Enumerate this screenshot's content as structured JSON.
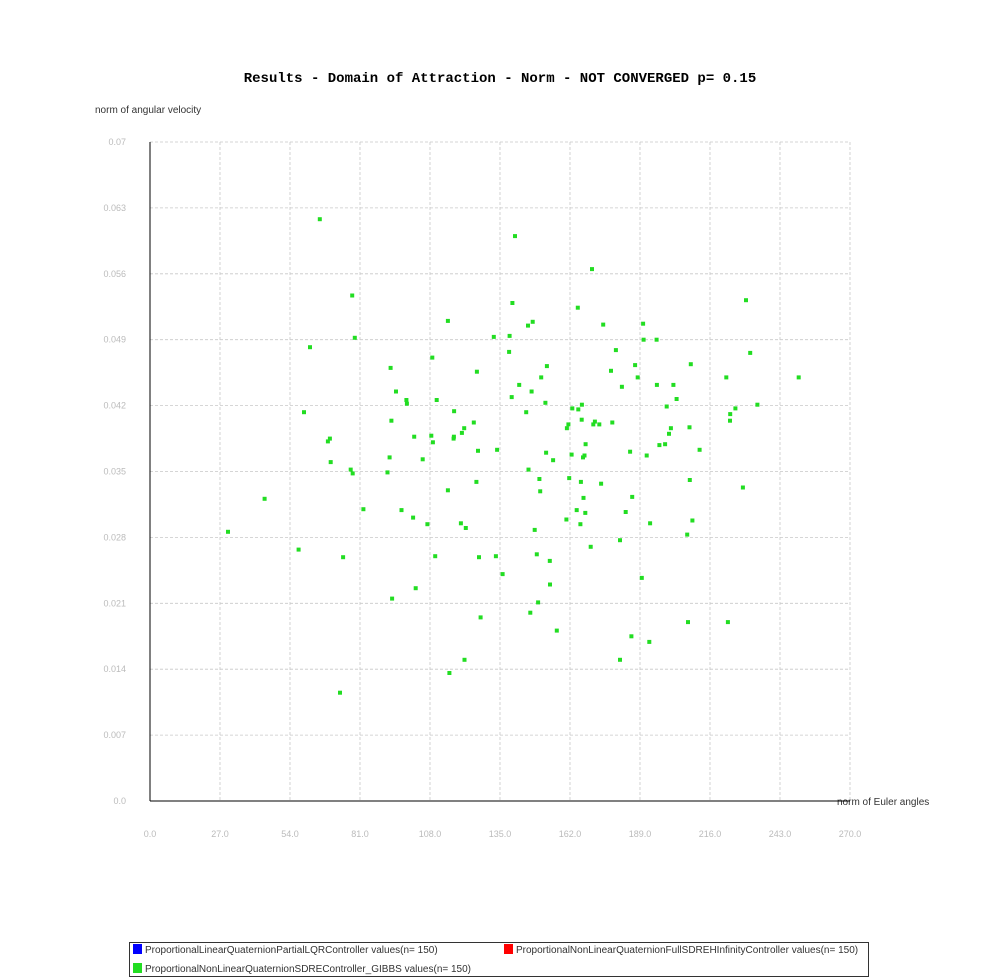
{
  "chart_data": {
    "type": "scatter",
    "title": "Results - Domain of Attraction - Norm - NOT CONVERGED p= 0.15",
    "xlabel": "norm of Euler angles",
    "ylabel": "norm of angular velocity",
    "xlim": [
      0,
      270
    ],
    "ylim": [
      0,
      0.07
    ],
    "x_ticks": [
      "0.0",
      "27.0",
      "54.0",
      "81.0",
      "108.0",
      "135.0",
      "162.0",
      "189.0",
      "216.0",
      "243.0",
      "270.0"
    ],
    "y_ticks": [
      "0.0",
      "0.007",
      "0.014",
      "0.021",
      "0.028",
      "0.035",
      "0.042",
      "0.049",
      "0.056",
      "0.063",
      "0.07"
    ],
    "grid": true,
    "legend_position": "bottom",
    "series": [
      {
        "name": "ProportionalLinearQuaternionPartialLQRController values(n= 150)",
        "color": "#0000ff",
        "points": []
      },
      {
        "name": "ProportionalNonLinearQuaternionFullSDREHInfinityController values(n= 150)",
        "color": "#ff0000",
        "points": []
      },
      {
        "name": "ProportionalNonLinearQuaternionSDREController_GIBBS values(n= 150)",
        "color": "#22dd22",
        "points": [
          [
            30.1,
            0.0286
          ],
          [
            44.2,
            0.0321
          ],
          [
            57.3,
            0.0267
          ],
          [
            59.4,
            0.0413
          ],
          [
            61.7,
            0.0482
          ],
          [
            65.5,
            0.0618
          ],
          [
            68.6,
            0.0382
          ],
          [
            69.4,
            0.0385
          ],
          [
            69.7,
            0.036
          ],
          [
            73.3,
            0.0115
          ],
          [
            74.5,
            0.0259
          ],
          [
            77.4,
            0.0352
          ],
          [
            78.0,
            0.0537
          ],
          [
            78.2,
            0.0348
          ],
          [
            79.0,
            0.0492
          ],
          [
            82.3,
            0.031
          ],
          [
            91.6,
            0.0349
          ],
          [
            92.4,
            0.0365
          ],
          [
            92.8,
            0.046
          ],
          [
            93.1,
            0.0404
          ],
          [
            93.4,
            0.0215
          ],
          [
            94.9,
            0.0435
          ],
          [
            97.0,
            0.0309
          ],
          [
            98.9,
            0.0426
          ],
          [
            99.1,
            0.0422
          ],
          [
            101.5,
            0.0301
          ],
          [
            101.9,
            0.0387
          ],
          [
            102.5,
            0.0226
          ],
          [
            105.2,
            0.0363
          ],
          [
            107.0,
            0.0294
          ],
          [
            108.5,
            0.0388
          ],
          [
            108.9,
            0.0471
          ],
          [
            109.1,
            0.0381
          ],
          [
            110.0,
            0.026
          ],
          [
            110.6,
            0.0426
          ],
          [
            114.9,
            0.033
          ],
          [
            114.9,
            0.051
          ],
          [
            115.5,
            0.0136
          ],
          [
            117.1,
            0.0385
          ],
          [
            117.2,
            0.0387
          ],
          [
            117.3,
            0.0414
          ],
          [
            119.9,
            0.0295
          ],
          [
            120.3,
            0.0391
          ],
          [
            121.2,
            0.0396
          ],
          [
            121.3,
            0.015
          ],
          [
            121.8,
            0.029
          ],
          [
            124.9,
            0.0402
          ],
          [
            125.9,
            0.0339
          ],
          [
            126.1,
            0.0456
          ],
          [
            126.5,
            0.0372
          ],
          [
            126.9,
            0.0259
          ],
          [
            127.5,
            0.0195
          ],
          [
            132.6,
            0.0493
          ],
          [
            133.4,
            0.026
          ],
          [
            133.9,
            0.0373
          ],
          [
            136.0,
            0.0241
          ],
          [
            138.5,
            0.0477
          ],
          [
            138.7,
            0.0494
          ],
          [
            139.5,
            0.0429
          ],
          [
            139.8,
            0.0529
          ],
          [
            140.8,
            0.06
          ],
          [
            142.4,
            0.0442
          ],
          [
            145.1,
            0.0413
          ],
          [
            145.8,
            0.0505
          ],
          [
            146.0,
            0.0352
          ],
          [
            146.7,
            0.02
          ],
          [
            147.2,
            0.0435
          ],
          [
            147.6,
            0.0509
          ],
          [
            148.4,
            0.0288
          ],
          [
            149.2,
            0.0262
          ],
          [
            149.7,
            0.0211
          ],
          [
            150.2,
            0.0342
          ],
          [
            150.5,
            0.0329
          ],
          [
            150.9,
            0.045
          ],
          [
            152.5,
            0.0423
          ],
          [
            152.8,
            0.037
          ],
          [
            153.1,
            0.0462
          ],
          [
            154.2,
            0.0255
          ],
          [
            154.3,
            0.023
          ],
          [
            155.5,
            0.0362
          ],
          [
            156.9,
            0.0181
          ],
          [
            160.6,
            0.0299
          ],
          [
            160.8,
            0.0396
          ],
          [
            161.4,
            0.04
          ],
          [
            161.7,
            0.0343
          ],
          [
            162.6,
            0.0368
          ],
          [
            162.9,
            0.0417
          ],
          [
            164.6,
            0.0309
          ],
          [
            165.0,
            0.0524
          ],
          [
            165.2,
            0.0416
          ],
          [
            166.0,
            0.0294
          ],
          [
            166.2,
            0.0339
          ],
          [
            166.5,
            0.0405
          ],
          [
            166.6,
            0.0421
          ],
          [
            167.0,
            0.0365
          ],
          [
            167.2,
            0.0322
          ],
          [
            167.6,
            0.0367
          ],
          [
            167.9,
            0.0306
          ],
          [
            168.0,
            0.0379
          ],
          [
            170.0,
            0.027
          ],
          [
            170.5,
            0.0565
          ],
          [
            171.0,
            0.04
          ],
          [
            171.6,
            0.0403
          ],
          [
            173.3,
            0.04
          ],
          [
            174.0,
            0.0337
          ],
          [
            174.8,
            0.0506
          ],
          [
            177.8,
            0.0457
          ],
          [
            178.3,
            0.0402
          ],
          [
            179.7,
            0.0479
          ],
          [
            181.3,
            0.015
          ],
          [
            181.3,
            0.0277
          ],
          [
            182.0,
            0.044
          ],
          [
            183.5,
            0.0307
          ],
          [
            185.2,
            0.0371
          ],
          [
            185.7,
            0.0175
          ],
          [
            186.0,
            0.0323
          ],
          [
            187.1,
            0.0463
          ],
          [
            188.1,
            0.045
          ],
          [
            189.7,
            0.0237
          ],
          [
            190.2,
            0.0507
          ],
          [
            190.4,
            0.049
          ],
          [
            191.6,
            0.0367
          ],
          [
            192.6,
            0.0169
          ],
          [
            192.9,
            0.0295
          ],
          [
            195.4,
            0.049
          ],
          [
            195.5,
            0.0442
          ],
          [
            196.5,
            0.0378
          ],
          [
            198.7,
            0.0379
          ],
          [
            199.3,
            0.0419
          ],
          [
            200.2,
            0.039
          ],
          [
            200.9,
            0.0396
          ],
          [
            201.9,
            0.0442
          ],
          [
            203.1,
            0.0427
          ],
          [
            207.2,
            0.0283
          ],
          [
            207.5,
            0.019
          ],
          [
            208.1,
            0.0397
          ],
          [
            208.2,
            0.0341
          ],
          [
            208.6,
            0.0464
          ],
          [
            209.2,
            0.0298
          ],
          [
            212.0,
            0.0373
          ],
          [
            222.3,
            0.045
          ],
          [
            222.9,
            0.019
          ],
          [
            223.7,
            0.0404
          ],
          [
            223.8,
            0.0411
          ],
          [
            225.8,
            0.0417
          ],
          [
            228.7,
            0.0333
          ],
          [
            229.9,
            0.0532
          ],
          [
            231.5,
            0.0476
          ],
          [
            234.3,
            0.0421
          ],
          [
            250.2,
            0.045
          ]
        ]
      }
    ]
  }
}
